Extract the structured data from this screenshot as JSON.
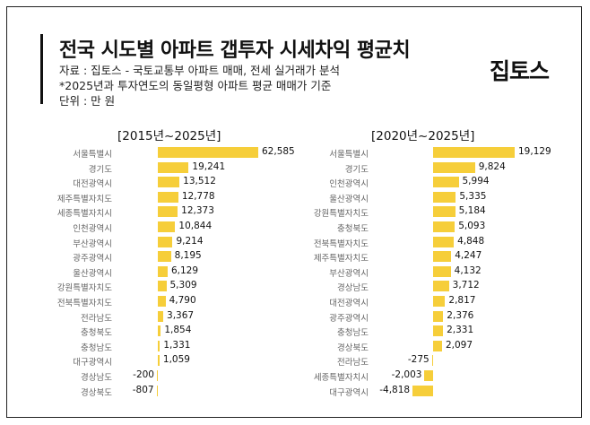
{
  "title": "전국 시도별 아파트 갭투자 시세차익 평균치",
  "source": "자료 : 집토스 - 국토교통부 아파트 매매, 전세 실거래가 분석",
  "note": "*2025년과 투자연도의 동일평형 아파트 평균 매매가 기준",
  "unit": "단위 : 만 원",
  "logo_text": "집토스",
  "colors": {
    "bar": "#f6ce3a",
    "text": "#111111",
    "label": "#666666"
  },
  "chart_data": [
    {
      "type": "bar",
      "orientation": "horizontal",
      "title": "[2015년~2025년]",
      "categories": [
        "서울특별시",
        "경기도",
        "대전광역시",
        "제주특별자치도",
        "세종특별자치시",
        "인천광역시",
        "부산광역시",
        "광주광역시",
        "울산광역시",
        "강원특별자치도",
        "전북특별자치도",
        "전라남도",
        "충청북도",
        "충청남도",
        "대구광역시",
        "경상남도",
        "경상북도"
      ],
      "values": [
        62585,
        19241,
        13512,
        12778,
        12373,
        10844,
        9214,
        8195,
        6129,
        5309,
        4790,
        3367,
        1854,
        1331,
        1059,
        -200,
        -807
      ],
      "value_labels": [
        "62,585",
        "19,241",
        "13,512",
        "12,778",
        "12,373",
        "10,844",
        "9,214",
        "8,195",
        "6,129",
        "5,309",
        "4,790",
        "3,367",
        "1,854",
        "1,331",
        "1,059",
        "-200",
        "-807"
      ]
    },
    {
      "type": "bar",
      "orientation": "horizontal",
      "title": "[2020년~2025년]",
      "categories": [
        "서울특별시",
        "경기도",
        "인천광역시",
        "울산광역시",
        "강원특별자치도",
        "충청북도",
        "전북특별자치도",
        "제주특별자치도",
        "부산광역시",
        "경상남도",
        "대전광역시",
        "광주광역시",
        "충청남도",
        "경상북도",
        "전라남도",
        "세종특별자치시",
        "대구광역시"
      ],
      "values": [
        19129,
        9824,
        5994,
        5335,
        5184,
        5093,
        4848,
        4247,
        4132,
        3712,
        2817,
        2376,
        2331,
        2097,
        -275,
        -2003,
        -4818
      ],
      "value_labels": [
        "19,129",
        "9,824",
        "5,994",
        "5,335",
        "5,184",
        "5,093",
        "4,848",
        "4,247",
        "4,132",
        "3,712",
        "2,817",
        "2,376",
        "2,331",
        "2,097",
        "-275",
        "-2,003",
        "-4,818"
      ]
    }
  ]
}
